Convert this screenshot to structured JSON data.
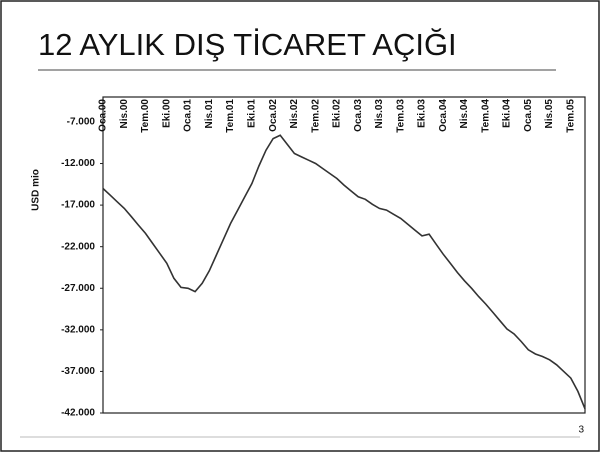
{
  "chart_data": {
    "type": "line",
    "title": "12 AYLIK DIŞ TİCARET AÇIĞI",
    "y_label": "USD mio",
    "page_number": "3",
    "categories": [
      "Oca.00",
      null,
      null,
      "Nis.00",
      null,
      null,
      "Tem.00",
      null,
      null,
      "Eki.00",
      null,
      null,
      "Oca.01",
      null,
      null,
      "Nis.01",
      null,
      null,
      "Tem.01",
      null,
      null,
      "Eki.01",
      null,
      null,
      "Oca.02",
      null,
      null,
      "Nis.02",
      null,
      null,
      "Tem.02",
      null,
      null,
      "Eki.02",
      null,
      null,
      "Oca.03",
      null,
      null,
      "Nis.03",
      null,
      null,
      "Tem.03",
      null,
      null,
      "Eki.03",
      null,
      null,
      "Oca.04",
      null,
      null,
      "Nis.04",
      null,
      null,
      "Tem.04",
      null,
      null,
      "Eki.04",
      null,
      null,
      "Oca.05",
      null,
      null,
      "Nis.05",
      null,
      null,
      "Tem.05",
      null,
      null
    ],
    "values": [
      -15000,
      -15800,
      -16600,
      -17400,
      -18400,
      -19400,
      -20400,
      -21600,
      -22800,
      -24000,
      -25800,
      -26900,
      -27000,
      -27400,
      -26400,
      -24900,
      -23000,
      -21100,
      -19200,
      -17600,
      -16000,
      -14400,
      -12300,
      -10400,
      -9000,
      -8600,
      -9700,
      -10800,
      -11200,
      -11600,
      -12000,
      -12600,
      -13200,
      -13800,
      -14600,
      -15300,
      -16000,
      -16300,
      -16900,
      -17400,
      -17600,
      -18100,
      -18600,
      -19300,
      -20000,
      -20700,
      -20500,
      -21700,
      -22900,
      -24000,
      -25100,
      -26100,
      -27000,
      -28000,
      -28900,
      -29900,
      -30900,
      -31900,
      -32500,
      -33400,
      -34400,
      -34900,
      -35200,
      -35600,
      -36200,
      -37000,
      -37800,
      -39400,
      -41500
    ],
    "color": "#333333",
    "ylim": [
      -42000,
      -4000
    ],
    "yticks": [
      {
        "value": -7000,
        "label": "-7.000"
      },
      {
        "value": -12000,
        "label": "-12.000"
      },
      {
        "value": -17000,
        "label": "-17.000"
      },
      {
        "value": -22000,
        "label": "-22.000"
      },
      {
        "value": -27000,
        "label": "-27.000"
      },
      {
        "value": -32000,
        "label": "-32.000"
      },
      {
        "value": -37000,
        "label": "-37.000"
      },
      {
        "value": -42000,
        "label": "-42.000"
      }
    ]
  }
}
